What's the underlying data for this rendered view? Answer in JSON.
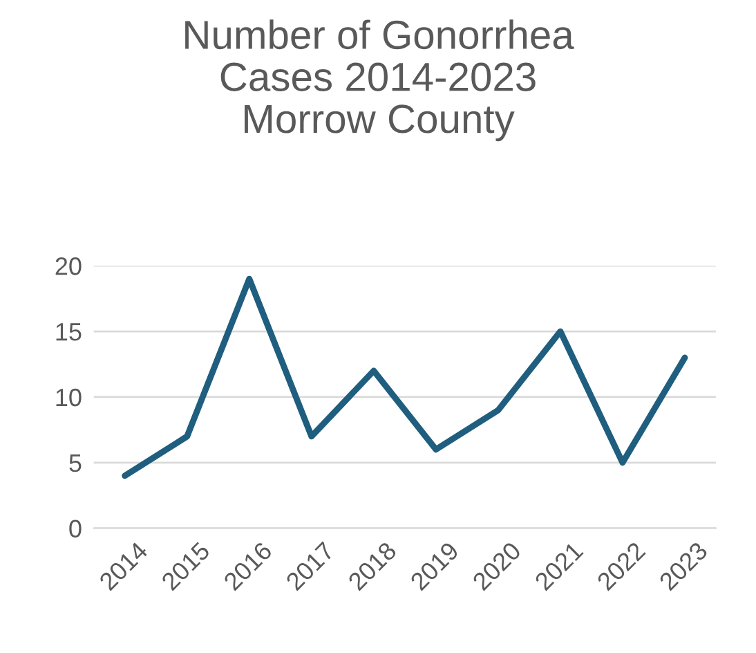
{
  "chart_data": {
    "type": "line",
    "title": "Number of Gonorrhea\nCases 2014-2023\nMorrow County",
    "categories": [
      "2014",
      "2015",
      "2016",
      "2017",
      "2018",
      "2019",
      "2020",
      "2021",
      "2022",
      "2023"
    ],
    "series": [
      {
        "color": "#1f5e7e",
        "values": [
          4,
          7,
          19,
          7,
          12,
          6,
          9,
          15,
          5,
          13
        ]
      }
    ],
    "ylim": [
      0,
      20
    ],
    "yticks": [
      0,
      5,
      10,
      15,
      20
    ],
    "grid": "y",
    "marker": "none",
    "line_style": "solid"
  }
}
